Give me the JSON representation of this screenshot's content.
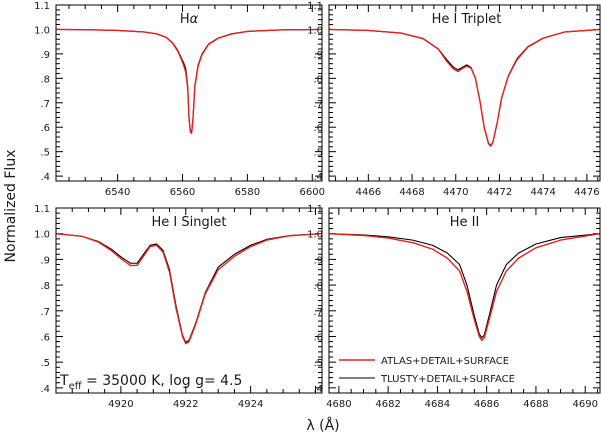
{
  "chart_data": {
    "type": "line",
    "ylabel": "Normalized Flux",
    "xlabel": "λ (Å)",
    "series_names": [
      "ATLAS+DETAIL+SURFACE",
      "TLUSTY+DETAIL+SURFACE"
    ],
    "colors": {
      "ATLAS+DETAIL+SURFACE": "#e8201c",
      "TLUSTY+DETAIL+SURFACE": "#000000"
    },
    "annotation": {
      "prefix": "T",
      "sub": "eff",
      "rest": " = 35000 K, log g= 4.5"
    },
    "panels": [
      {
        "title": "Hα",
        "title_base": "H",
        "title_greek": "α",
        "xlim": [
          6521,
          6603
        ],
        "ylim": [
          0.38,
          1.1
        ],
        "xticks": [
          6540,
          6560,
          6580,
          6600
        ],
        "yticks": [
          0.4,
          0.5,
          0.6,
          0.7,
          0.8,
          0.9,
          1.0,
          1.1
        ],
        "yticklabels": [
          ".4",
          ".5",
          ".6",
          ".7",
          ".8",
          ".9",
          "1.0",
          "1.1"
        ],
        "series": [
          {
            "name": "TLUSTY+DETAIL+SURFACE",
            "x": [
              6521,
              6530,
              6540,
              6548,
              6552,
              6555,
              6557,
              6558.5,
              6559.5,
              6560.3,
              6561.0,
              6561.6,
              6562.0,
              6562.4,
              6562.8,
              6563.2,
              6563.8,
              6564.8,
              6566,
              6568,
              6571,
              6575,
              6580,
              6590,
              6603
            ],
            "y": [
              1.0,
              0.999,
              0.996,
              0.99,
              0.982,
              0.968,
              0.945,
              0.915,
              0.888,
              0.865,
              0.84,
              0.77,
              0.64,
              0.585,
              0.58,
              0.63,
              0.77,
              0.855,
              0.9,
              0.94,
              0.965,
              0.982,
              0.992,
              0.998,
              1.0
            ]
          },
          {
            "name": "ATLAS+DETAIL+SURFACE",
            "x": [
              6521,
              6530,
              6540,
              6548,
              6552,
              6555,
              6557,
              6558.5,
              6559.5,
              6560.3,
              6561.0,
              6561.6,
              6562.0,
              6562.4,
              6562.8,
              6563.2,
              6563.8,
              6564.8,
              6566,
              6568,
              6571,
              6575,
              6580,
              6590,
              6603
            ],
            "y": [
              1.0,
              0.999,
              0.996,
              0.99,
              0.982,
              0.967,
              0.943,
              0.912,
              0.883,
              0.855,
              0.825,
              0.76,
              0.64,
              0.582,
              0.575,
              0.625,
              0.765,
              0.85,
              0.897,
              0.938,
              0.964,
              0.981,
              0.992,
              0.998,
              1.0
            ]
          }
        ]
      },
      {
        "title": "He I Triplet",
        "xlim": [
          4464.2,
          4476.6
        ],
        "ylim": [
          0.38,
          1.1
        ],
        "xticks": [
          4466,
          4468,
          4470,
          4472,
          4474,
          4476
        ],
        "yticks": [
          0.4,
          0.5,
          0.6,
          0.7,
          0.8,
          0.9,
          1.0,
          1.1
        ],
        "yticklabels": [
          ".4",
          ".5",
          ".6",
          ".7",
          ".8",
          ".9",
          "1.0",
          "1.1"
        ],
        "series": [
          {
            "name": "TLUSTY+DETAIL+SURFACE",
            "x": [
              4464.2,
              4466,
              4467.5,
              4468.5,
              4469.2,
              4469.6,
              4469.9,
              4470.1,
              4470.3,
              4470.5,
              4470.7,
              4470.9,
              4471.1,
              4471.3,
              4471.5,
              4471.6,
              4471.7,
              4471.9,
              4472.1,
              4472.4,
              4472.8,
              4473.3,
              4474,
              4475,
              4476.6
            ],
            "y": [
              1.0,
              0.996,
              0.985,
              0.962,
              0.92,
              0.875,
              0.845,
              0.835,
              0.845,
              0.855,
              0.845,
              0.8,
              0.71,
              0.6,
              0.535,
              0.525,
              0.54,
              0.62,
              0.72,
              0.81,
              0.88,
              0.93,
              0.965,
              0.99,
              1.0
            ]
          },
          {
            "name": "ATLAS+DETAIL+SURFACE",
            "x": [
              4464.2,
              4466,
              4467.5,
              4468.5,
              4469.2,
              4469.6,
              4469.9,
              4470.1,
              4470.3,
              4470.5,
              4470.7,
              4470.9,
              4471.1,
              4471.3,
              4471.5,
              4471.6,
              4471.7,
              4471.9,
              4472.1,
              4472.4,
              4472.8,
              4473.3,
              4474,
              4475,
              4476.6
            ],
            "y": [
              1.0,
              0.996,
              0.985,
              0.963,
              0.92,
              0.868,
              0.838,
              0.828,
              0.84,
              0.85,
              0.842,
              0.8,
              0.71,
              0.6,
              0.532,
              0.522,
              0.538,
              0.62,
              0.72,
              0.808,
              0.876,
              0.928,
              0.964,
              0.99,
              1.0
            ]
          }
        ]
      },
      {
        "title": "He I Singlet",
        "xlim": [
          4918.0,
          4926.2
        ],
        "ylim": [
          0.38,
          1.1
        ],
        "xticks": [
          4920,
          4922,
          4924
        ],
        "yticks": [
          0.4,
          0.5,
          0.6,
          0.7,
          0.8,
          0.9,
          1.0,
          1.1
        ],
        "yticklabels": [
          ".4",
          ".5",
          ".6",
          ".7",
          ".8",
          ".9",
          "1.0",
          "1.1"
        ],
        "series": [
          {
            "name": "TLUSTY+DETAIL+SURFACE",
            "x": [
              4918.0,
              4918.8,
              4919.3,
              4919.7,
              4920.0,
              4920.3,
              4920.5,
              4920.7,
              4920.9,
              4921.1,
              4921.3,
              4921.5,
              4921.7,
              4921.9,
              4922.0,
              4922.1,
              4922.3,
              4922.6,
              4923.0,
              4923.5,
              4924.0,
              4924.5,
              4925.2,
              4926.2
            ],
            "y": [
              1.0,
              0.99,
              0.97,
              0.94,
              0.91,
              0.885,
              0.885,
              0.92,
              0.955,
              0.96,
              0.935,
              0.86,
              0.72,
              0.605,
              0.577,
              0.585,
              0.65,
              0.77,
              0.87,
              0.92,
              0.955,
              0.978,
              0.993,
              1.0
            ]
          },
          {
            "name": "ATLAS+DETAIL+SURFACE",
            "x": [
              4918.0,
              4918.8,
              4919.3,
              4919.7,
              4920.0,
              4920.3,
              4920.5,
              4920.7,
              4920.9,
              4921.1,
              4921.3,
              4921.5,
              4921.7,
              4921.9,
              4922.0,
              4922.1,
              4922.3,
              4922.6,
              4923.0,
              4923.5,
              4924.0,
              4924.5,
              4925.2,
              4926.2
            ],
            "y": [
              1.0,
              0.99,
              0.968,
              0.935,
              0.903,
              0.876,
              0.877,
              0.913,
              0.95,
              0.955,
              0.928,
              0.85,
              0.71,
              0.6,
              0.572,
              0.58,
              0.645,
              0.765,
              0.86,
              0.912,
              0.95,
              0.975,
              0.992,
              1.0
            ]
          }
        ]
      },
      {
        "title": "He II",
        "xlim": [
          4679.6,
          4690.6
        ],
        "ylim": [
          0.38,
          1.1
        ],
        "xticks": [
          4680,
          4682,
          4684,
          4686,
          4688,
          4690
        ],
        "yticks": [
          0.4,
          0.5,
          0.6,
          0.7,
          0.8,
          0.9,
          1.0,
          1.1
        ],
        "yticklabels": [
          ".4",
          ".5",
          ".6",
          ".7",
          ".8",
          ".9",
          "1.0",
          "1.1"
        ],
        "series": [
          {
            "name": "TLUSTY+DETAIL+SURFACE",
            "x": [
              4679.6,
              4681,
              4682,
              4683,
              4683.8,
              4684.4,
              4684.9,
              4685.2,
              4685.5,
              4685.7,
              4685.8,
              4685.9,
              4686.1,
              4686.4,
              4686.8,
              4687.3,
              4688,
              4689,
              4690.6
            ],
            "y": [
              1.0,
              0.995,
              0.988,
              0.975,
              0.955,
              0.925,
              0.88,
              0.8,
              0.68,
              0.61,
              0.595,
              0.605,
              0.68,
              0.8,
              0.88,
              0.925,
              0.96,
              0.985,
              1.0
            ]
          },
          {
            "name": "ATLAS+DETAIL+SURFACE",
            "x": [
              4679.6,
              4681,
              4682,
              4683,
              4683.8,
              4684.4,
              4684.9,
              4685.2,
              4685.5,
              4685.7,
              4685.8,
              4685.9,
              4686.1,
              4686.4,
              4686.8,
              4687.3,
              4688,
              4689,
              4690.6
            ],
            "y": [
              1.0,
              0.993,
              0.983,
              0.965,
              0.94,
              0.905,
              0.855,
              0.775,
              0.665,
              0.6,
              0.585,
              0.595,
              0.665,
              0.775,
              0.855,
              0.905,
              0.945,
              0.975,
              1.0
            ]
          }
        ]
      }
    ]
  }
}
